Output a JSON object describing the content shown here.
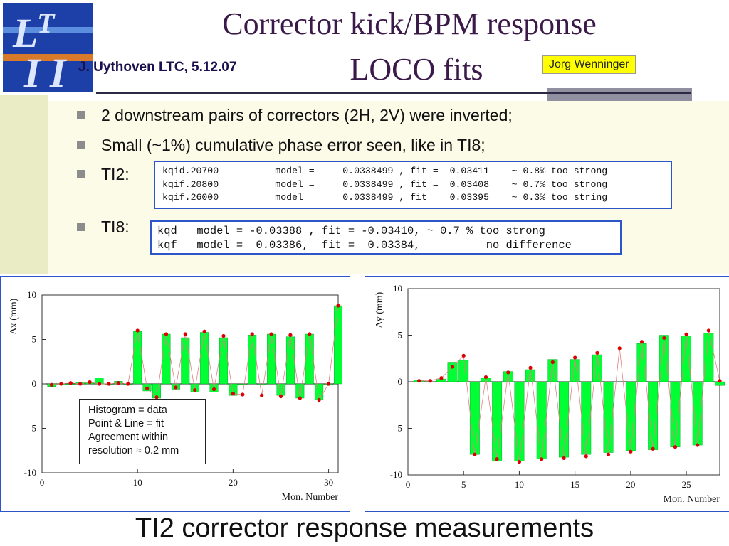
{
  "header": {
    "title_line1": "Corrector kick/BPM response",
    "title_line2": "LOCO fits",
    "author_left": "J. Uythoven LTC, 5.12.07",
    "author_right": "Jorg Wenninger",
    "logo_letters": "LTI"
  },
  "bullets": [
    "2 downstream pairs of correctors (2H, 2V) were inverted;",
    "Small (~1%) cumulative phase error seen, like in TI8;",
    "TI2:",
    "TI8:"
  ],
  "ti2_fits": [
    "kqid.20700          model =    -0.0338499 , fit = -0.03411    ~ 0.8% too strong",
    "kqif.20800          model =     0.0338499 , fit =  0.03408    ~ 0.7% too strong",
    "kqif.26000          model =     0.0338499 , fit =  0.03395    ~ 0.3% too string"
  ],
  "ti8_fits": [
    "kqd   model = -0.03388 , fit = -0.03410, ~ 0.7 % too strong",
    "kqf   model =  0.03386,  fit =  0.03384,          no difference"
  ],
  "legend_box": [
    "Histogram = data",
    "Point & Line = fit",
    "Agreement within",
    "resolution ≈ 0.2 mm"
  ],
  "caption": "TI2 corrector response measurements",
  "colors": {
    "bar": "#00ff33",
    "fit": "#dd0000",
    "box_border": "#2b55c8"
  },
  "chart_data": [
    {
      "type": "bar",
      "ylabel": "Δx (mm)",
      "xlabel": "Mon. Number",
      "xlim": [
        0,
        31
      ],
      "ylim": [
        -10,
        10
      ],
      "xticks": [
        "0",
        "10",
        "20",
        "30"
      ],
      "yticks": [
        "10",
        "5",
        "0",
        "-5",
        "-10"
      ],
      "x": [
        1,
        2,
        3,
        4,
        5,
        6,
        7,
        8,
        9,
        10,
        11,
        12,
        13,
        14,
        15,
        16,
        17,
        18,
        19,
        20,
        21,
        22,
        23,
        24,
        25,
        26,
        27,
        28,
        29,
        30,
        31
      ],
      "values": [
        -0.3,
        -0.1,
        0,
        0.2,
        0.2,
        0.7,
        0,
        0.3,
        0,
        5.9,
        -0.8,
        -1.6,
        5.6,
        -0.6,
        5.2,
        -0.9,
        5.8,
        -0.9,
        5.2,
        -1.3,
        0,
        5.5,
        0,
        5.6,
        -1.3,
        5.3,
        -1.6,
        5.6,
        -1.8,
        0,
        8.8
      ],
      "fit": [
        -0.1,
        0,
        0.1,
        0,
        0.2,
        0,
        0,
        0.1,
        0,
        6.0,
        -0.5,
        -1.5,
        5.6,
        -0.4,
        5.6,
        -0.7,
        5.9,
        -0.6,
        5.4,
        -1.1,
        -1.2,
        5.6,
        -1.3,
        5.6,
        -1.4,
        5.5,
        -1.6,
        5.6,
        -1.8,
        0,
        8.8
      ]
    },
    {
      "type": "bar",
      "ylabel": "Δy (mm)",
      "xlabel": "Mon. Number",
      "xlim": [
        0,
        28
      ],
      "ylim": [
        -10,
        10
      ],
      "xticks": [
        "0",
        "5",
        "10",
        "15",
        "20",
        "25"
      ],
      "yticks": [
        "10",
        "5",
        "0",
        "-5",
        "-10"
      ],
      "x": [
        1,
        2,
        3,
        4,
        5,
        6,
        7,
        8,
        9,
        10,
        11,
        12,
        13,
        14,
        15,
        16,
        17,
        18,
        19,
        20,
        21,
        22,
        23,
        24,
        25,
        26,
        27,
        28
      ],
      "values": [
        0.2,
        0,
        0.3,
        2.1,
        2.3,
        -7.8,
        0.4,
        -8.5,
        1.1,
        -8.5,
        1.3,
        -8.3,
        2.4,
        -8.1,
        2.4,
        -7.8,
        2.9,
        -7.6,
        0,
        -7.4,
        4.1,
        -7.3,
        5.0,
        -7.0,
        4.9,
        -6.8,
        5.2,
        -0.4
      ],
      "fit": [
        0.1,
        0.1,
        0.4,
        1.6,
        2.8,
        -7.8,
        0.5,
        -8.3,
        1.0,
        -8.6,
        1.5,
        -8.3,
        2.1,
        -8.2,
        2.6,
        -8.0,
        3.1,
        -7.8,
        3.6,
        -7.5,
        4.3,
        -7.2,
        4.7,
        -7.0,
        5.1,
        -6.8,
        5.5,
        0.1
      ]
    }
  ]
}
